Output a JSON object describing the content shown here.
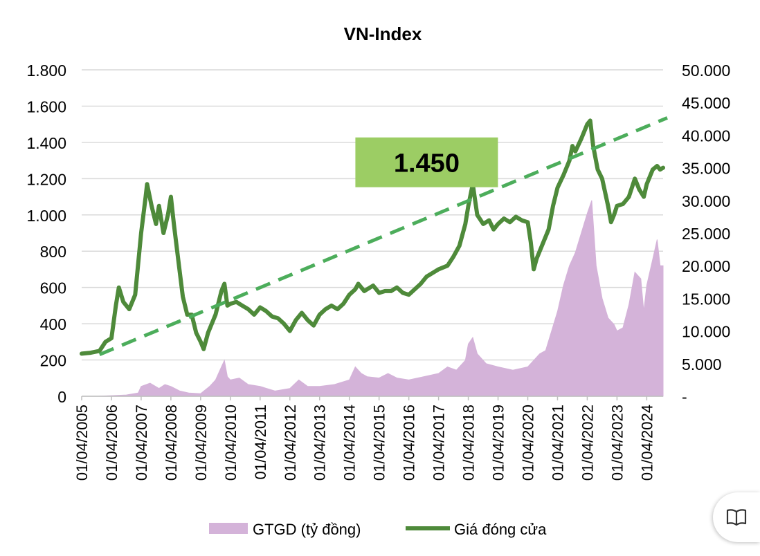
{
  "chart_data": {
    "type": "line",
    "title": "VN-Index",
    "x_tick_labels": [
      "01/04/2005",
      "01/04/2006",
      "01/04/2007",
      "01/04/2008",
      "01/04/2009",
      "01/04/2010",
      "01/04/2011",
      "01/04/2012",
      "01/04/2013",
      "01/04/2014",
      "01/04/2015",
      "01/04/2016",
      "01/04/2017",
      "01/04/2018",
      "01/04/2019",
      "01/04/2020",
      "01/04/2021",
      "01/04/2022",
      "01/04/2023",
      "01/04/2024"
    ],
    "xlim": [
      2005.0,
      2024.55
    ],
    "left_axis": {
      "ylim": [
        0,
        1800
      ],
      "tick_values": [
        0,
        200,
        400,
        600,
        800,
        1000,
        1200,
        1400,
        1600,
        1800
      ],
      "tick_labels": [
        "0",
        "200",
        "400",
        "600",
        "800",
        "1.000",
        "1.200",
        "1.400",
        "1.600",
        "1.800"
      ]
    },
    "right_axis": {
      "ylim": [
        0,
        50000
      ],
      "tick_values": [
        0,
        5000,
        10000,
        15000,
        20000,
        25000,
        30000,
        35000,
        40000,
        45000,
        50000
      ],
      "tick_labels": [
        "-",
        "5.000",
        "10.000",
        "15.000",
        "20.000",
        "25.000",
        "30.000",
        "35.000",
        "40.000",
        "45.000",
        "50.000"
      ]
    },
    "grid": true,
    "legend_position": "bottom",
    "series": [
      {
        "name": "GTGD (tỷ đồng)",
        "kind": "area",
        "axis": "right",
        "color": "#d4b3d9",
        "points": [
          [
            2005.0,
            0
          ],
          [
            2005.5,
            0
          ],
          [
            2006.0,
            100
          ],
          [
            2006.5,
            200
          ],
          [
            2006.9,
            500
          ],
          [
            2007.0,
            1500
          ],
          [
            2007.3,
            2000
          ],
          [
            2007.6,
            1200
          ],
          [
            2007.8,
            1800
          ],
          [
            2008.0,
            1500
          ],
          [
            2008.3,
            800
          ],
          [
            2008.6,
            500
          ],
          [
            2009.0,
            400
          ],
          [
            2009.3,
            1500
          ],
          [
            2009.5,
            2500
          ],
          [
            2009.7,
            4500
          ],
          [
            2009.8,
            5500
          ],
          [
            2009.9,
            3000
          ],
          [
            2010.0,
            2500
          ],
          [
            2010.3,
            2800
          ],
          [
            2010.6,
            1800
          ],
          [
            2011.0,
            1500
          ],
          [
            2011.5,
            800
          ],
          [
            2012.0,
            1200
          ],
          [
            2012.3,
            2500
          ],
          [
            2012.6,
            1500
          ],
          [
            2013.0,
            1500
          ],
          [
            2013.5,
            1800
          ],
          [
            2014.0,
            2500
          ],
          [
            2014.2,
            4500
          ],
          [
            2014.4,
            3500
          ],
          [
            2014.6,
            3000
          ],
          [
            2015.0,
            2800
          ],
          [
            2015.3,
            3500
          ],
          [
            2015.6,
            2800
          ],
          [
            2016.0,
            2500
          ],
          [
            2016.5,
            3000
          ],
          [
            2017.0,
            3500
          ],
          [
            2017.3,
            4500
          ],
          [
            2017.6,
            4000
          ],
          [
            2017.9,
            5500
          ],
          [
            2018.0,
            8000
          ],
          [
            2018.15,
            9000
          ],
          [
            2018.3,
            6500
          ],
          [
            2018.6,
            5000
          ],
          [
            2019.0,
            4500
          ],
          [
            2019.5,
            4000
          ],
          [
            2020.0,
            4500
          ],
          [
            2020.2,
            5500
          ],
          [
            2020.4,
            6500
          ],
          [
            2020.6,
            7000
          ],
          [
            2020.8,
            10000
          ],
          [
            2021.0,
            13000
          ],
          [
            2021.2,
            17000
          ],
          [
            2021.4,
            20000
          ],
          [
            2021.6,
            22000
          ],
          [
            2021.8,
            25000
          ],
          [
            2022.0,
            28000
          ],
          [
            2022.15,
            30000
          ],
          [
            2022.3,
            20000
          ],
          [
            2022.5,
            15000
          ],
          [
            2022.7,
            12000
          ],
          [
            2022.9,
            11000
          ],
          [
            2023.0,
            10000
          ],
          [
            2023.2,
            10500
          ],
          [
            2023.4,
            14000
          ],
          [
            2023.6,
            19000
          ],
          [
            2023.8,
            18000
          ],
          [
            2023.9,
            13000
          ],
          [
            2024.0,
            17000
          ],
          [
            2024.2,
            21000
          ],
          [
            2024.35,
            24000
          ],
          [
            2024.45,
            20000
          ],
          [
            2024.55,
            20000
          ]
        ]
      },
      {
        "name": "Giá đóng cửa",
        "kind": "line",
        "axis": "left",
        "color": "#4e8a3a",
        "points": [
          [
            2005.0,
            235
          ],
          [
            2005.3,
            240
          ],
          [
            2005.6,
            250
          ],
          [
            2005.8,
            300
          ],
          [
            2006.0,
            320
          ],
          [
            2006.15,
            500
          ],
          [
            2006.25,
            600
          ],
          [
            2006.4,
            520
          ],
          [
            2006.6,
            480
          ],
          [
            2006.8,
            560
          ],
          [
            2007.0,
            900
          ],
          [
            2007.15,
            1100
          ],
          [
            2007.2,
            1170
          ],
          [
            2007.35,
            1050
          ],
          [
            2007.5,
            950
          ],
          [
            2007.6,
            1050
          ],
          [
            2007.75,
            900
          ],
          [
            2007.9,
            1000
          ],
          [
            2008.0,
            1100
          ],
          [
            2008.1,
            950
          ],
          [
            2008.25,
            750
          ],
          [
            2008.4,
            550
          ],
          [
            2008.55,
            450
          ],
          [
            2008.7,
            450
          ],
          [
            2008.85,
            350
          ],
          [
            2009.0,
            300
          ],
          [
            2009.1,
            260
          ],
          [
            2009.25,
            350
          ],
          [
            2009.5,
            450
          ],
          [
            2009.7,
            580
          ],
          [
            2009.8,
            620
          ],
          [
            2009.9,
            500
          ],
          [
            2010.0,
            510
          ],
          [
            2010.2,
            520
          ],
          [
            2010.4,
            500
          ],
          [
            2010.6,
            480
          ],
          [
            2010.8,
            450
          ],
          [
            2011.0,
            490
          ],
          [
            2011.2,
            470
          ],
          [
            2011.4,
            440
          ],
          [
            2011.6,
            430
          ],
          [
            2011.8,
            400
          ],
          [
            2012.0,
            360
          ],
          [
            2012.2,
            420
          ],
          [
            2012.4,
            460
          ],
          [
            2012.6,
            420
          ],
          [
            2012.8,
            390
          ],
          [
            2013.0,
            450
          ],
          [
            2013.2,
            480
          ],
          [
            2013.4,
            500
          ],
          [
            2013.6,
            480
          ],
          [
            2013.8,
            510
          ],
          [
            2014.0,
            560
          ],
          [
            2014.2,
            590
          ],
          [
            2014.3,
            620
          ],
          [
            2014.5,
            580
          ],
          [
            2014.8,
            610
          ],
          [
            2015.0,
            570
          ],
          [
            2015.2,
            580
          ],
          [
            2015.4,
            580
          ],
          [
            2015.6,
            600
          ],
          [
            2015.8,
            570
          ],
          [
            2016.0,
            560
          ],
          [
            2016.2,
            590
          ],
          [
            2016.4,
            620
          ],
          [
            2016.6,
            660
          ],
          [
            2016.8,
            680
          ],
          [
            2017.0,
            700
          ],
          [
            2017.3,
            720
          ],
          [
            2017.5,
            770
          ],
          [
            2017.7,
            830
          ],
          [
            2017.9,
            950
          ],
          [
            2018.0,
            1050
          ],
          [
            2018.15,
            1170
          ],
          [
            2018.3,
            1000
          ],
          [
            2018.5,
            950
          ],
          [
            2018.7,
            970
          ],
          [
            2018.85,
            920
          ],
          [
            2019.0,
            950
          ],
          [
            2019.2,
            980
          ],
          [
            2019.4,
            960
          ],
          [
            2019.6,
            990
          ],
          [
            2019.8,
            970
          ],
          [
            2020.0,
            960
          ],
          [
            2020.1,
            850
          ],
          [
            2020.2,
            700
          ],
          [
            2020.3,
            760
          ],
          [
            2020.5,
            840
          ],
          [
            2020.7,
            920
          ],
          [
            2020.85,
            1050
          ],
          [
            2021.0,
            1150
          ],
          [
            2021.2,
            1220
          ],
          [
            2021.4,
            1300
          ],
          [
            2021.5,
            1380
          ],
          [
            2021.6,
            1350
          ],
          [
            2021.8,
            1420
          ],
          [
            2022.0,
            1500
          ],
          [
            2022.1,
            1520
          ],
          [
            2022.2,
            1380
          ],
          [
            2022.35,
            1250
          ],
          [
            2022.5,
            1200
          ],
          [
            2022.7,
            1050
          ],
          [
            2022.8,
            960
          ],
          [
            2022.9,
            1000
          ],
          [
            2023.0,
            1050
          ],
          [
            2023.2,
            1060
          ],
          [
            2023.4,
            1100
          ],
          [
            2023.6,
            1200
          ],
          [
            2023.75,
            1140
          ],
          [
            2023.9,
            1100
          ],
          [
            2024.0,
            1170
          ],
          [
            2024.2,
            1250
          ],
          [
            2024.35,
            1270
          ],
          [
            2024.45,
            1250
          ],
          [
            2024.55,
            1260
          ]
        ]
      }
    ],
    "trendline": {
      "name": "trend",
      "axis": "left",
      "style": "dashed",
      "color": "#4cad5b",
      "from": [
        2005.6,
        230
      ],
      "to": [
        2024.55,
        1520
      ]
    },
    "annotations": [
      {
        "text": "1.450",
        "background": "#9ccd64",
        "x": 2016.6,
        "y": 1290
      }
    ]
  },
  "legend": {
    "items": [
      {
        "label": "GTGD (tỷ đồng)",
        "color": "#d4b3d9"
      },
      {
        "label": "Giá đóng cửa",
        "color": "#4e8a3a"
      }
    ]
  },
  "reader_icon": "book-open-icon"
}
